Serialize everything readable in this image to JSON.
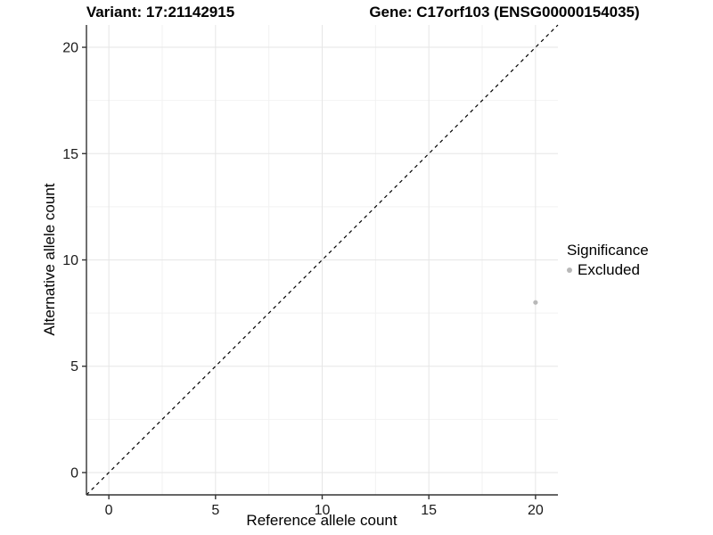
{
  "titles": {
    "variant": "Variant: 17:21142915",
    "gene": "Gene: C17orf103 (ENSG00000154035)"
  },
  "chart_data": {
    "type": "scatter",
    "xlabel": "Reference allele count",
    "ylabel": "Alternative allele count",
    "xlim": [
      -1.05,
      21.05
    ],
    "ylim": [
      -1.05,
      21.05
    ],
    "xticks": [
      0,
      5,
      10,
      15,
      20
    ],
    "yticks": [
      0,
      5,
      10,
      15,
      20
    ],
    "minor_xticks": [
      2.5,
      7.5,
      12.5,
      17.5
    ],
    "minor_yticks": [
      2.5,
      7.5,
      12.5,
      17.5
    ],
    "grid": "major+minor",
    "reference_line": {
      "type": "identity",
      "from": -1.05,
      "to": 21.05,
      "style": "dashed",
      "color": "#000000"
    },
    "series": [
      {
        "name": "Excluded",
        "color": "#b8b8b8",
        "points": [
          {
            "x": 20,
            "y": 8
          }
        ]
      }
    ],
    "legend": {
      "title": "Significance",
      "position": "right",
      "items": [
        {
          "label": "Excluded",
          "color": "#b8b8b8"
        }
      ]
    }
  },
  "colors": {
    "axis_line": "#333333",
    "tick_mark": "#333333",
    "tick_label": "#1a1a1a",
    "grid_major": "#e6e6e6",
    "grid_minor": "#f2f2f2",
    "background": "#ffffff"
  }
}
